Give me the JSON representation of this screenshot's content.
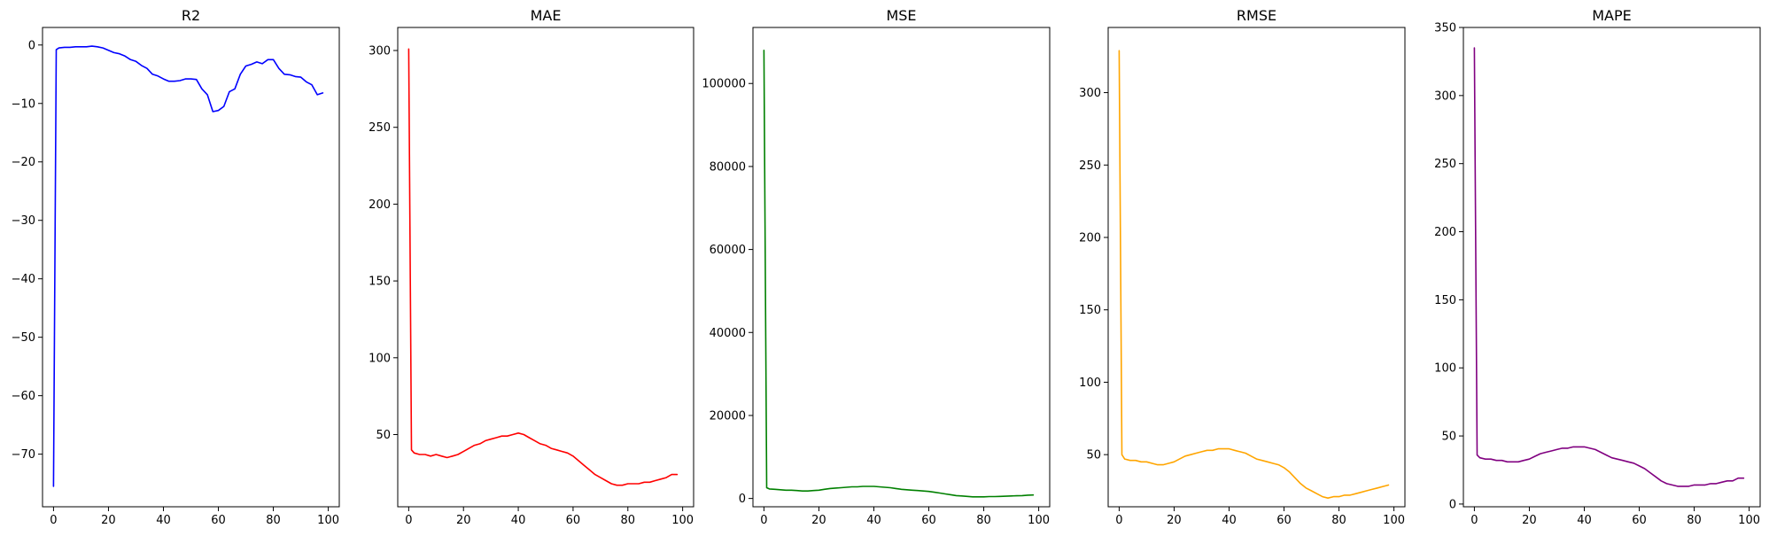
{
  "chart_data": [
    {
      "type": "line",
      "title": "R2",
      "color": "#0000ff",
      "xlim": [
        -4,
        104
      ],
      "ylim": [
        -79,
        3
      ],
      "xticks": [
        0,
        20,
        40,
        60,
        80,
        100
      ],
      "yticks": [
        0,
        -10,
        -20,
        -30,
        -40,
        -50,
        -60,
        -70
      ],
      "ytick_labels": [
        "0",
        "−10",
        "−20",
        "−30",
        "−40",
        "−50",
        "−60",
        "−70"
      ],
      "x": [
        0,
        1,
        2,
        4,
        6,
        8,
        10,
        12,
        14,
        16,
        18,
        20,
        22,
        24,
        26,
        28,
        30,
        32,
        34,
        36,
        38,
        40,
        42,
        44,
        46,
        48,
        50,
        52,
        54,
        56,
        58,
        60,
        62,
        64,
        66,
        68,
        70,
        72,
        74,
        76,
        78,
        80,
        82,
        84,
        86,
        88,
        90,
        92,
        94,
        96,
        98
      ],
      "y": [
        -75.5,
        -0.8,
        -0.5,
        -0.4,
        -0.4,
        -0.3,
        -0.3,
        -0.3,
        -0.2,
        -0.3,
        -0.5,
        -0.9,
        -1.3,
        -1.5,
        -1.9,
        -2.5,
        -2.8,
        -3.5,
        -4.0,
        -5.0,
        -5.3,
        -5.8,
        -6.2,
        -6.2,
        -6.1,
        -5.8,
        -5.8,
        -5.9,
        -7.5,
        -8.5,
        -11.4,
        -11.2,
        -10.5,
        -8.0,
        -7.5,
        -5.0,
        -3.6,
        -3.3,
        -2.9,
        -3.2,
        -2.5,
        -2.5,
        -4.0,
        -5.0,
        -5.1,
        -5.4,
        -5.5,
        -6.3,
        -6.8,
        -8.5,
        -8.2
      ]
    },
    {
      "type": "line",
      "title": "MAE",
      "color": "#ff0000",
      "xlim": [
        -4,
        104
      ],
      "ylim": [
        3,
        315
      ],
      "xticks": [
        0,
        20,
        40,
        60,
        80,
        100
      ],
      "yticks": [
        50,
        100,
        150,
        200,
        250,
        300
      ],
      "x": [
        0,
        1,
        2,
        4,
        6,
        8,
        10,
        12,
        14,
        16,
        18,
        20,
        22,
        24,
        26,
        28,
        30,
        32,
        34,
        36,
        38,
        40,
        42,
        44,
        46,
        48,
        50,
        52,
        54,
        56,
        58,
        60,
        62,
        64,
        66,
        68,
        70,
        72,
        74,
        76,
        78,
        80,
        82,
        84,
        86,
        88,
        90,
        92,
        94,
        96,
        98
      ],
      "y": [
        301,
        40,
        38,
        37,
        37,
        36,
        37,
        36,
        35,
        36,
        37,
        39,
        41,
        43,
        44,
        46,
        47,
        48,
        49,
        49,
        50,
        51,
        50,
        48,
        46,
        44,
        43,
        41,
        40,
        39,
        38,
        36,
        33,
        30,
        27,
        24,
        22,
        20,
        18,
        17,
        17,
        18,
        18,
        18,
        19,
        19,
        20,
        21,
        22,
        24,
        24
      ]
    },
    {
      "type": "line",
      "title": "MSE",
      "color": "#008000",
      "xlim": [
        -4,
        104
      ],
      "ylim": [
        -2000,
        113500
      ],
      "xticks": [
        0,
        20,
        40,
        60,
        80,
        100
      ],
      "yticks": [
        0,
        20000,
        40000,
        60000,
        80000,
        100000
      ],
      "x": [
        0,
        1,
        2,
        4,
        6,
        8,
        10,
        12,
        14,
        16,
        18,
        20,
        22,
        24,
        26,
        28,
        30,
        32,
        34,
        36,
        38,
        40,
        42,
        44,
        46,
        48,
        50,
        52,
        54,
        56,
        58,
        60,
        62,
        64,
        66,
        68,
        70,
        72,
        74,
        76,
        78,
        80,
        82,
        84,
        86,
        88,
        90,
        92,
        94,
        96,
        98
      ],
      "y": [
        108000,
        2600,
        2300,
        2200,
        2100,
        2000,
        2000,
        1900,
        1800,
        1800,
        1900,
        2000,
        2200,
        2400,
        2500,
        2600,
        2700,
        2800,
        2800,
        2900,
        2900,
        2900,
        2800,
        2700,
        2600,
        2400,
        2200,
        2100,
        2000,
        1900,
        1800,
        1700,
        1500,
        1300,
        1100,
        900,
        700,
        600,
        500,
        400,
        400,
        400,
        450,
        450,
        500,
        550,
        600,
        650,
        700,
        800,
        850
      ]
    },
    {
      "type": "line",
      "title": "RMSE",
      "color": "#ffa500",
      "xlim": [
        -4,
        104
      ],
      "ylim": [
        14,
        345
      ],
      "xticks": [
        0,
        20,
        40,
        60,
        80,
        100
      ],
      "yticks": [
        50,
        100,
        150,
        200,
        250,
        300
      ],
      "x": [
        0,
        1,
        2,
        4,
        6,
        8,
        10,
        12,
        14,
        16,
        18,
        20,
        22,
        24,
        26,
        28,
        30,
        32,
        34,
        36,
        38,
        40,
        42,
        44,
        46,
        48,
        50,
        52,
        54,
        56,
        58,
        60,
        62,
        64,
        66,
        68,
        70,
        72,
        74,
        76,
        78,
        80,
        82,
        84,
        86,
        88,
        90,
        92,
        94,
        96,
        98
      ],
      "y": [
        329,
        50,
        47,
        46,
        46,
        45,
        45,
        44,
        43,
        43,
        44,
        45,
        47,
        49,
        50,
        51,
        52,
        53,
        53,
        54,
        54,
        54,
        53,
        52,
        51,
        49,
        47,
        46,
        45,
        44,
        43,
        41,
        38,
        34,
        30,
        27,
        25,
        23,
        21,
        20,
        21,
        21,
        22,
        22,
        23,
        24,
        25,
        26,
        27,
        28,
        29
      ]
    },
    {
      "type": "line",
      "title": "MAPE",
      "color": "#800080",
      "xlim": [
        -4,
        104
      ],
      "ylim": [
        -2,
        350
      ],
      "xticks": [
        0,
        20,
        40,
        60,
        80,
        100
      ],
      "yticks": [
        0,
        50,
        100,
        150,
        200,
        250,
        300,
        350
      ],
      "x": [
        0,
        1,
        2,
        4,
        6,
        8,
        10,
        12,
        14,
        16,
        18,
        20,
        22,
        24,
        26,
        28,
        30,
        32,
        34,
        36,
        38,
        40,
        42,
        44,
        46,
        48,
        50,
        52,
        54,
        56,
        58,
        60,
        62,
        64,
        66,
        68,
        70,
        72,
        74,
        76,
        78,
        80,
        82,
        84,
        86,
        88,
        90,
        92,
        94,
        96,
        98
      ],
      "y": [
        335,
        36,
        34,
        33,
        33,
        32,
        32,
        31,
        31,
        31,
        32,
        33,
        35,
        37,
        38,
        39,
        40,
        41,
        41,
        42,
        42,
        42,
        41,
        40,
        38,
        36,
        34,
        33,
        32,
        31,
        30,
        28,
        26,
        23,
        20,
        17,
        15,
        14,
        13,
        13,
        13,
        14,
        14,
        14,
        15,
        15,
        16,
        17,
        17,
        19,
        19
      ]
    }
  ]
}
